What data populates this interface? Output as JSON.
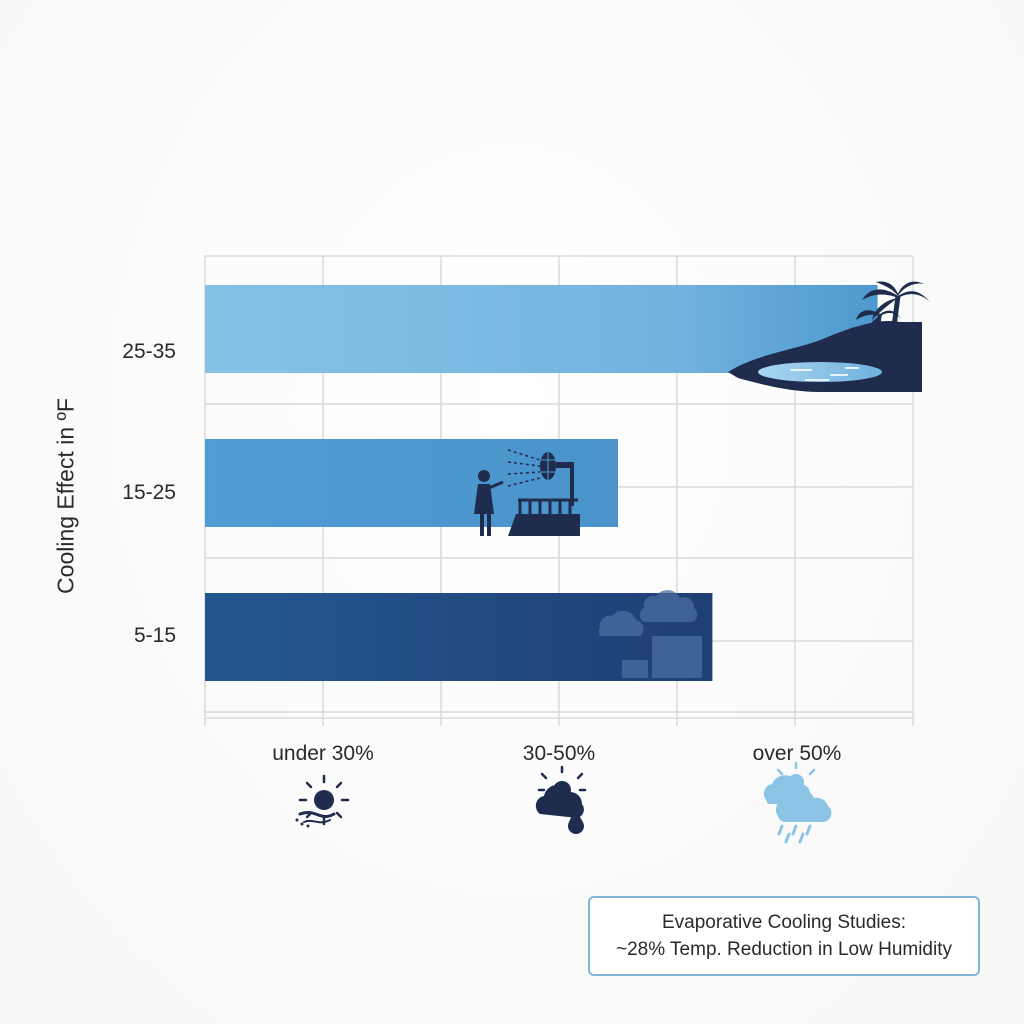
{
  "chart_data": {
    "type": "bar",
    "orientation": "horizontal",
    "ylabel": "Cooling Effect in ºF",
    "categories": [
      "25-35",
      "15-25",
      "5-15"
    ],
    "values": [
      5.7,
      3.5,
      4.3
    ],
    "x_categories": [
      "under 30%",
      "30-50%",
      "over 50%"
    ],
    "xlim": [
      0,
      6
    ],
    "grid": true,
    "bar_colors": [
      {
        "from": "#86c2e6",
        "to": "#4e98cf"
      },
      {
        "from": "#4f9dd3",
        "to": "#4a93cb"
      },
      {
        "from": "#24578f",
        "to": "#1f3f74"
      }
    ],
    "icons": {
      "bar_25_35": "tropical-island-icon",
      "bar_15_25": "person-fan-balcony-icon",
      "bar_5_15": "cloudy-city-icon",
      "under_30": "sun-wind-icon",
      "30_50": "sun-cloud-drop-icon",
      "over_50": "sun-cloud-rain-icon"
    },
    "annotation": {
      "line1": "Evaporative Cooling Studies:",
      "line2": "~28% Temp. Reduction in Low Humidity"
    }
  },
  "colors": {
    "dark_navy": "#1f2c4d",
    "light_blue": "#8cc4e6",
    "grid": "#d9d9d9",
    "note_border": "#7fb6d8"
  }
}
